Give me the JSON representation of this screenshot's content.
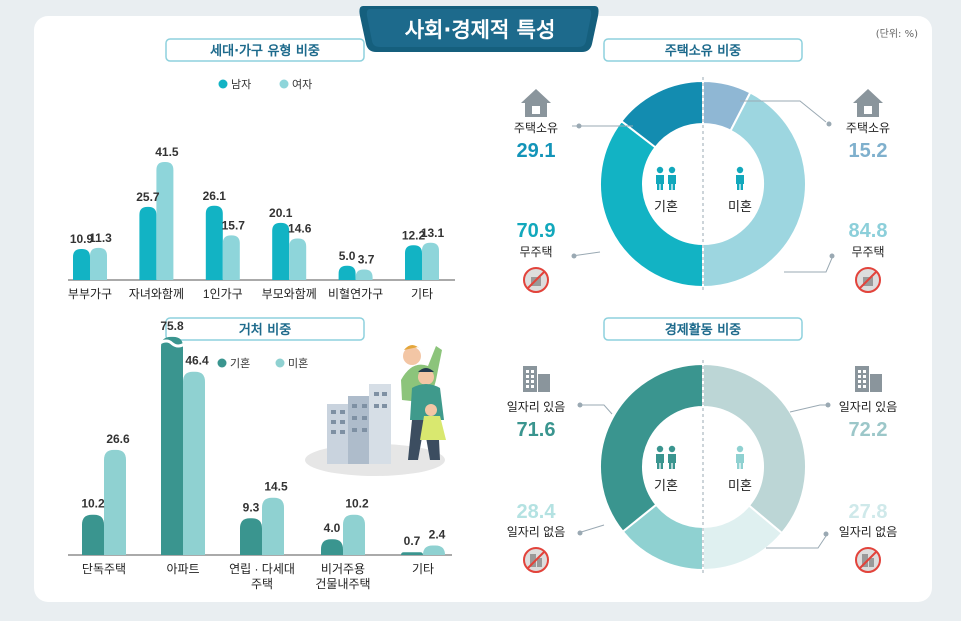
{
  "main_title": "사회·경제적 특성",
  "unit": "(단위: %)",
  "colors": {
    "navy": "#155f7d",
    "banner": "#1d6a8c",
    "boxborder": "#8ed1dd",
    "boxtext": "#1d6a8c"
  },
  "household": {
    "title": "세대·가구 유형 비중",
    "legend": [
      "남자",
      "여자"
    ],
    "colors": [
      "#12b3c4",
      "#8ed5da"
    ],
    "categories": [
      "부부가구",
      "자녀와함께",
      "1인가구",
      "부모와함께",
      "비혈연가구",
      "기타"
    ],
    "male": [
      10.9,
      25.7,
      26.1,
      20.1,
      5.0,
      12.2
    ],
    "female": [
      11.3,
      41.5,
      15.7,
      14.6,
      3.7,
      13.1
    ]
  },
  "residence": {
    "title": "거처 비중",
    "legend": [
      "기혼",
      "미혼"
    ],
    "colors": [
      "#3a958f",
      "#8fd1d1"
    ],
    "categories": [
      [
        "단독주택"
      ],
      [
        "아파트"
      ],
      [
        "연립 · 다세대",
        "주택"
      ],
      [
        "비거주용",
        "건물내주택"
      ],
      [
        "기타"
      ]
    ],
    "married": [
      10.2,
      75.8,
      9.3,
      4.0,
      0.7
    ],
    "unmarried": [
      26.6,
      46.4,
      14.5,
      10.2,
      2.4
    ]
  },
  "housing": {
    "title": "주택소유 비중",
    "married_label": "기혼",
    "unmarried_label": "미혼",
    "married": {
      "own_label": "주택소유",
      "own": 29.1,
      "none_label": "무주택",
      "none": 70.9
    },
    "unmarried": {
      "own_label": "주택소유",
      "own": 15.2,
      "none_label": "무주택",
      "none": 84.8
    },
    "colors": {
      "m_own": "#138cb0",
      "m_none": "#12b3c4",
      "u_own": "#8fb7d4",
      "u_none": "#9dd6e0"
    },
    "value_colors": {
      "m_own": "#1394b8",
      "m_none": "#12a8bc",
      "u_own": "#7fb0cd",
      "u_none": "#8ccfda"
    }
  },
  "economic": {
    "title": "경제활동 비중",
    "married_label": "기혼",
    "unmarried_label": "미혼",
    "married": {
      "yes_label": "일자리 있음",
      "yes": 71.6,
      "no_label": "일자리 없음",
      "no": 28.4
    },
    "unmarried": {
      "yes_label": "일자리 있음",
      "yes": 72.2,
      "no_label": "일자리 없음",
      "no": 27.8
    },
    "colors": {
      "m_yes": "#3a958f",
      "m_no": "#8fd1d1",
      "u_yes": "#bcd6d6",
      "u_no": "#dff0f0"
    },
    "value_colors": {
      "m_yes": "#3a958f",
      "m_no": "#b4e2e2",
      "u_yes": "#9cc7c9",
      "u_no": "#cfe9ea"
    }
  },
  "chart_data": [
    {
      "type": "bar",
      "title": "세대·가구 유형 비중",
      "categories": [
        "부부가구",
        "자녀와함께",
        "1인가구",
        "부모와함께",
        "비혈연가구",
        "기타"
      ],
      "series": [
        {
          "name": "남자",
          "values": [
            10.9,
            25.7,
            26.1,
            20.1,
            5.0,
            12.2
          ]
        },
        {
          "name": "여자",
          "values": [
            11.3,
            41.5,
            15.7,
            14.6,
            3.7,
            13.1
          ]
        }
      ]
    },
    {
      "type": "bar",
      "title": "거처 비중",
      "categories": [
        "단독주택",
        "아파트",
        "연립 · 다세대 주택",
        "비거주용 건물내주택",
        "기타"
      ],
      "series": [
        {
          "name": "기혼",
          "values": [
            10.2,
            75.8,
            9.3,
            4.0,
            0.7
          ]
        },
        {
          "name": "미혼",
          "values": [
            26.6,
            46.4,
            14.5,
            10.2,
            2.4
          ]
        }
      ]
    },
    {
      "type": "pie",
      "title": "주택소유 비중",
      "series": [
        {
          "name": "기혼",
          "labels": [
            "주택소유",
            "무주택"
          ],
          "values": [
            29.1,
            70.9
          ]
        },
        {
          "name": "미혼",
          "labels": [
            "주택소유",
            "무주택"
          ],
          "values": [
            15.2,
            84.8
          ]
        }
      ]
    },
    {
      "type": "pie",
      "title": "경제활동 비중",
      "series": [
        {
          "name": "기혼",
          "labels": [
            "일자리 있음",
            "일자리 없음"
          ],
          "values": [
            71.6,
            28.4
          ]
        },
        {
          "name": "미혼",
          "labels": [
            "일자리 있음",
            "일자리 없음"
          ],
          "values": [
            72.2,
            27.8
          ]
        }
      ]
    }
  ]
}
